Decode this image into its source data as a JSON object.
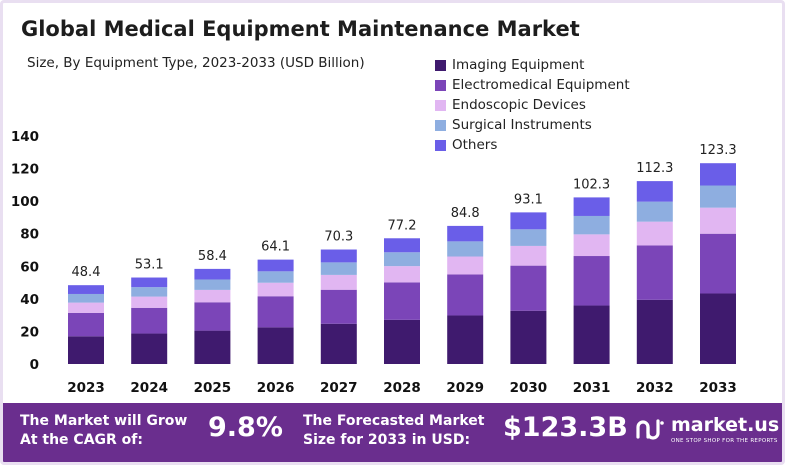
{
  "chart_data": {
    "type": "stacked-bar",
    "title": "Global Medical Equipment Maintenance Market",
    "subtitle": "Size, By Equipment Type, 2023-2033  (USD Billion)",
    "categories": [
      "2023",
      "2024",
      "2025",
      "2026",
      "2027",
      "2028",
      "2029",
      "2030",
      "2031",
      "2032",
      "2033"
    ],
    "totals": [
      48.4,
      53.1,
      58.4,
      64.1,
      70.3,
      77.2,
      84.8,
      93.1,
      102.3,
      112.3,
      123.3
    ],
    "total_labels": [
      "48.4",
      "53.1",
      "58.4",
      "64.1",
      "70.3",
      "77.2",
      "84.8",
      "93.1",
      "102.3",
      "112.3",
      "123.3"
    ],
    "series": [
      {
        "name": "Imaging Equipment",
        "color": "#3f1a6e",
        "values": [
          17,
          18.7,
          20.5,
          22.5,
          24.7,
          27.1,
          29.8,
          32.7,
          35.9,
          39.4,
          43.3
        ]
      },
      {
        "name": "Electromedical Equipment",
        "color": "#7b45b8",
        "values": [
          14.4,
          15.8,
          17.4,
          19.1,
          20.9,
          23,
          25.2,
          27.7,
          30.4,
          33.4,
          36.7
        ]
      },
      {
        "name": "Endoscopic Devices",
        "color": "#e1b6f2",
        "values": [
          6.3,
          6.9,
          7.6,
          8.3,
          9.1,
          10,
          11,
          12.1,
          13.3,
          14.6,
          16
        ]
      },
      {
        "name": "Surgical Instruments",
        "color": "#8eaee0",
        "values": [
          5.3,
          5.8,
          6.4,
          7,
          7.7,
          8.5,
          9.3,
          10.2,
          11.3,
          12.3,
          13.6
        ]
      },
      {
        "name": "Others",
        "color": "#6a5ee8",
        "values": [
          5.4,
          5.9,
          6.5,
          7.2,
          7.9,
          8.6,
          9.5,
          10.4,
          11.4,
          12.6,
          13.7
        ]
      }
    ],
    "yticks": [
      0,
      20,
      40,
      60,
      80,
      100,
      120,
      140
    ],
    "ylim": [
      0,
      140
    ],
    "grid": false,
    "legend_position": "top-right"
  },
  "footer": {
    "cagr_label_line1": "The Market will Grow",
    "cagr_label_line2": "At the CAGR of:",
    "cagr_value": "9.8%",
    "forecast_label_line1": "The Forecasted Market",
    "forecast_label_line2": "Size for 2033 in USD:",
    "forecast_value": "$123.3B",
    "brand_name": "market.us",
    "brand_tagline": "ONE STOP SHOP FOR THE REPORTS"
  },
  "colors": {
    "footer_background": "#6a2e8e",
    "frame_border": "#e9dff1"
  }
}
